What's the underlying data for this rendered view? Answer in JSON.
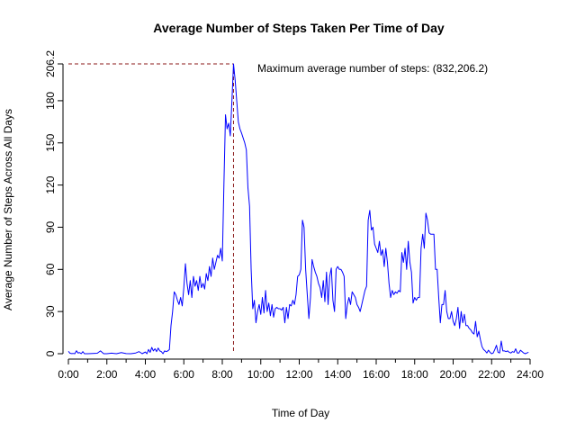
{
  "chart_data": {
    "type": "line",
    "title": "Average Number of Steps Taken Per Time of Day",
    "xlabel": "Time of Day",
    "ylabel": "Average Number of Steps Across All Days",
    "xlim": [
      0,
      24
    ],
    "ylim": [
      0,
      206.2
    ],
    "x_ticks": [
      0,
      2,
      4,
      6,
      8,
      10,
      12,
      14,
      16,
      18,
      20,
      22,
      24
    ],
    "x_tick_labels": [
      "0:00",
      "2:00",
      "4:00",
      "6:00",
      "8:00",
      "10:00",
      "12:00",
      "14:00",
      "16:00",
      "18:00",
      "20:00",
      "22:00",
      "24:00"
    ],
    "y_ticks": [
      0,
      30,
      60,
      90,
      120,
      150,
      180,
      206.2
    ],
    "y_tick_labels": [
      "0",
      "30",
      "60",
      "90",
      "120",
      "150",
      "180",
      "206.2"
    ],
    "grid": false,
    "colors": {
      "line": "#0000ff",
      "reference": "#8b1a1a",
      "axis": "#000000"
    },
    "max_point": {
      "x": 8.5833,
      "y": 206.2
    },
    "annotation": "Maximum average number of steps: (832,206.2)",
    "series": [
      {
        "values": [
          [
            0.0,
            1.7
          ],
          [
            0.0833,
            0.3
          ],
          [
            0.1667,
            0.1
          ],
          [
            0.25,
            0.2
          ],
          [
            0.333,
            0.0
          ],
          [
            0.4167,
            2.1
          ],
          [
            0.5,
            0.5
          ],
          [
            0.5833,
            0.8
          ],
          [
            0.6667,
            0.0
          ],
          [
            0.75,
            1.5
          ],
          [
            0.8333,
            0.0
          ],
          [
            1.0,
            0.0
          ],
          [
            1.25,
            0.2
          ],
          [
            1.5,
            0.3
          ],
          [
            1.6667,
            2.0
          ],
          [
            1.8333,
            0.0
          ],
          [
            2.0,
            0.0
          ],
          [
            2.25,
            0.4
          ],
          [
            2.5,
            0.0
          ],
          [
            2.75,
            0.8
          ],
          [
            3.0,
            0.1
          ],
          [
            3.25,
            0.0
          ],
          [
            3.5,
            0.5
          ],
          [
            3.6667,
            1.5
          ],
          [
            3.75,
            0.8
          ],
          [
            3.8333,
            0.0
          ],
          [
            4.0,
            1.2
          ],
          [
            4.0833,
            0.0
          ],
          [
            4.1667,
            3.0
          ],
          [
            4.25,
            1.0
          ],
          [
            4.3333,
            4.5
          ],
          [
            4.4167,
            2.0
          ],
          [
            4.5,
            3.5
          ],
          [
            4.5833,
            1.5
          ],
          [
            4.6667,
            4.0
          ],
          [
            4.75,
            2.0
          ],
          [
            4.8333,
            1.5
          ],
          [
            4.9167,
            0.0
          ],
          [
            5.0,
            2.0
          ],
          [
            5.0833,
            1.5
          ],
          [
            5.1667,
            2.0
          ],
          [
            5.25,
            3.0
          ],
          [
            5.3333,
            20.0
          ],
          [
            5.4167,
            30.0
          ],
          [
            5.5,
            44.0
          ],
          [
            5.5833,
            42.0
          ],
          [
            5.6667,
            38.0
          ],
          [
            5.75,
            35.0
          ],
          [
            5.8333,
            40.0
          ],
          [
            5.9167,
            34.0
          ],
          [
            6.0,
            47.0
          ],
          [
            6.0833,
            64.0
          ],
          [
            6.1667,
            50.0
          ],
          [
            6.25,
            42.0
          ],
          [
            6.3333,
            52.0
          ],
          [
            6.4167,
            40.0
          ],
          [
            6.5,
            55.0
          ],
          [
            6.5833,
            48.0
          ],
          [
            6.6667,
            52.0
          ],
          [
            6.75,
            45.0
          ],
          [
            6.8333,
            55.0
          ],
          [
            6.9167,
            47.0
          ],
          [
            7.0,
            50.0
          ],
          [
            7.0833,
            46.0
          ],
          [
            7.1667,
            57.0
          ],
          [
            7.25,
            52.0
          ],
          [
            7.3333,
            62.0
          ],
          [
            7.4167,
            55.0
          ],
          [
            7.5,
            68.0
          ],
          [
            7.5833,
            60.0
          ],
          [
            7.6667,
            65.0
          ],
          [
            7.75,
            70.0
          ],
          [
            7.8333,
            68.0
          ],
          [
            7.9167,
            75.0
          ],
          [
            8.0,
            66.0
          ],
          [
            8.0833,
            120.0
          ],
          [
            8.1667,
            170.0
          ],
          [
            8.25,
            160.0
          ],
          [
            8.3333,
            164.0
          ],
          [
            8.4167,
            155.0
          ],
          [
            8.5,
            180.0
          ],
          [
            8.5833,
            206.2
          ],
          [
            8.6667,
            195.0
          ],
          [
            8.75,
            180.0
          ],
          [
            8.8333,
            165.0
          ],
          [
            8.9167,
            160.0
          ],
          [
            9.0,
            157.0
          ],
          [
            9.1667,
            150.0
          ],
          [
            9.25,
            145.0
          ],
          [
            9.3333,
            118.0
          ],
          [
            9.4167,
            105.0
          ],
          [
            9.5,
            60.0
          ],
          [
            9.5833,
            32.0
          ],
          [
            9.6667,
            38.0
          ],
          [
            9.75,
            22.0
          ],
          [
            9.8333,
            30.0
          ],
          [
            9.9167,
            35.0
          ],
          [
            10.0,
            28.0
          ],
          [
            10.0833,
            40.0
          ],
          [
            10.1667,
            29.0
          ],
          [
            10.25,
            45.0
          ],
          [
            10.3333,
            30.0
          ],
          [
            10.4167,
            36.0
          ],
          [
            10.5,
            27.0
          ],
          [
            10.5833,
            35.0
          ],
          [
            10.6667,
            26.0
          ],
          [
            10.75,
            32.0
          ],
          [
            10.8333,
            33.0
          ],
          [
            10.9167,
            32.0
          ],
          [
            11.0,
            32.0
          ],
          [
            11.0833,
            31.0
          ],
          [
            11.1667,
            33.0
          ],
          [
            11.25,
            22.0
          ],
          [
            11.3333,
            33.0
          ],
          [
            11.4167,
            25.0
          ],
          [
            11.5,
            35.0
          ],
          [
            11.5833,
            34.0
          ],
          [
            11.6667,
            38.0
          ],
          [
            11.75,
            35.0
          ],
          [
            11.8333,
            42.0
          ],
          [
            11.9167,
            55.0
          ],
          [
            12.0,
            56.0
          ],
          [
            12.0833,
            60.0
          ],
          [
            12.1667,
            95.0
          ],
          [
            12.25,
            90.0
          ],
          [
            12.3333,
            60.0
          ],
          [
            12.4167,
            42.0
          ],
          [
            12.5,
            25.0
          ],
          [
            12.5833,
            40.0
          ],
          [
            12.6667,
            67.0
          ],
          [
            12.75,
            62.0
          ],
          [
            12.8333,
            58.0
          ],
          [
            12.9167,
            55.0
          ],
          [
            13.0,
            50.0
          ],
          [
            13.0833,
            47.0
          ],
          [
            13.1667,
            40.0
          ],
          [
            13.25,
            52.0
          ],
          [
            13.3333,
            37.0
          ],
          [
            13.4167,
            58.0
          ],
          [
            13.5,
            35.0
          ],
          [
            13.5833,
            55.0
          ],
          [
            13.6667,
            61.0
          ],
          [
            13.75,
            38.0
          ],
          [
            13.8333,
            30.0
          ],
          [
            13.9167,
            60.0
          ],
          [
            14.0,
            62.0
          ],
          [
            14.0833,
            60.0
          ],
          [
            14.1667,
            60.0
          ],
          [
            14.25,
            58.0
          ],
          [
            14.3333,
            55.0
          ],
          [
            14.4167,
            25.0
          ],
          [
            14.5,
            35.0
          ],
          [
            14.5833,
            40.0
          ],
          [
            14.6667,
            35.0
          ],
          [
            14.75,
            44.0
          ],
          [
            14.8333,
            42.0
          ],
          [
            14.9167,
            40.0
          ],
          [
            15.0,
            35.0
          ],
          [
            15.0833,
            33.0
          ],
          [
            15.1667,
            30.0
          ],
          [
            15.25,
            35.0
          ],
          [
            15.3333,
            40.0
          ],
          [
            15.4167,
            45.0
          ],
          [
            15.5,
            48.0
          ],
          [
            15.5833,
            95.0
          ],
          [
            15.6667,
            102.0
          ],
          [
            15.75,
            88.0
          ],
          [
            15.8333,
            90.0
          ],
          [
            15.9167,
            78.0
          ],
          [
            16.0,
            75.0
          ],
          [
            16.0833,
            72.0
          ],
          [
            16.1667,
            80.0
          ],
          [
            16.25,
            70.0
          ],
          [
            16.3333,
            74.0
          ],
          [
            16.4167,
            62.0
          ],
          [
            16.5,
            75.0
          ],
          [
            16.5833,
            65.0
          ],
          [
            16.6667,
            50.0
          ],
          [
            16.75,
            40.0
          ],
          [
            16.8333,
            45.0
          ],
          [
            16.9167,
            42.0
          ],
          [
            17.0,
            44.0
          ],
          [
            17.0833,
            43.0
          ],
          [
            17.1667,
            45.0
          ],
          [
            17.25,
            44.0
          ],
          [
            17.3333,
            72.0
          ],
          [
            17.4167,
            65.0
          ],
          [
            17.5,
            75.0
          ],
          [
            17.5833,
            60.0
          ],
          [
            17.6667,
            80.0
          ],
          [
            17.75,
            65.0
          ],
          [
            17.8333,
            58.0
          ],
          [
            17.9167,
            36.0
          ],
          [
            18.0,
            40.0
          ],
          [
            18.0833,
            38.0
          ],
          [
            18.1667,
            40.0
          ],
          [
            18.25,
            40.0
          ],
          [
            18.3333,
            75.0
          ],
          [
            18.4167,
            85.0
          ],
          [
            18.5,
            75.0
          ],
          [
            18.5833,
            100.0
          ],
          [
            18.6667,
            95.0
          ],
          [
            18.75,
            86.0
          ],
          [
            18.8333,
            85.0
          ],
          [
            18.9167,
            85.0
          ],
          [
            19.0,
            85.0
          ],
          [
            19.0833,
            60.0
          ],
          [
            19.1667,
            60.0
          ],
          [
            19.25,
            40.0
          ],
          [
            19.3333,
            22.0
          ],
          [
            19.4167,
            35.0
          ],
          [
            19.5,
            35.0
          ],
          [
            19.5833,
            45.0
          ],
          [
            19.6667,
            30.0
          ],
          [
            19.75,
            25.0
          ],
          [
            19.8333,
            25.0
          ],
          [
            19.9167,
            30.0
          ],
          [
            20.0,
            23.0
          ],
          [
            20.0833,
            20.0
          ],
          [
            20.1667,
            25.0
          ],
          [
            20.25,
            33.0
          ],
          [
            20.3333,
            18.0
          ],
          [
            20.4167,
            30.0
          ],
          [
            20.5,
            22.0
          ],
          [
            20.5833,
            28.0
          ],
          [
            20.6667,
            20.0
          ],
          [
            20.75,
            20.0
          ],
          [
            20.8333,
            18.0
          ],
          [
            20.9167,
            17.0
          ],
          [
            21.0,
            15.0
          ],
          [
            21.0833,
            14.0
          ],
          [
            21.1667,
            23.0
          ],
          [
            21.25,
            12.0
          ],
          [
            21.3333,
            16.0
          ],
          [
            21.4167,
            10.0
          ],
          [
            21.5,
            5.0
          ],
          [
            21.5833,
            3.0
          ],
          [
            21.6667,
            2.0
          ],
          [
            21.75,
            0.5
          ],
          [
            21.8333,
            2.5
          ],
          [
            21.9167,
            1.0
          ],
          [
            22.0,
            0.0
          ],
          [
            22.0833,
            0.5
          ],
          [
            22.1667,
            3.0
          ],
          [
            22.25,
            6.0
          ],
          [
            22.3333,
            1.0
          ],
          [
            22.4167,
            0.5
          ],
          [
            22.5,
            9.0
          ],
          [
            22.5833,
            2.0
          ],
          [
            22.6667,
            2.0
          ],
          [
            22.75,
            1.5
          ],
          [
            22.8333,
            2.0
          ],
          [
            22.9167,
            1.0
          ],
          [
            23.0,
            0.5
          ],
          [
            23.0833,
            1.5
          ],
          [
            23.1667,
            1.0
          ],
          [
            23.25,
            3.5
          ],
          [
            23.3333,
            0.5
          ],
          [
            23.4167,
            0.5
          ],
          [
            23.5,
            2.5
          ],
          [
            23.5833,
            1.5
          ],
          [
            23.6667,
            0.5
          ],
          [
            23.75,
            0.0
          ],
          [
            23.8333,
            0.5
          ],
          [
            23.9167,
            1.0
          ]
        ]
      }
    ]
  }
}
